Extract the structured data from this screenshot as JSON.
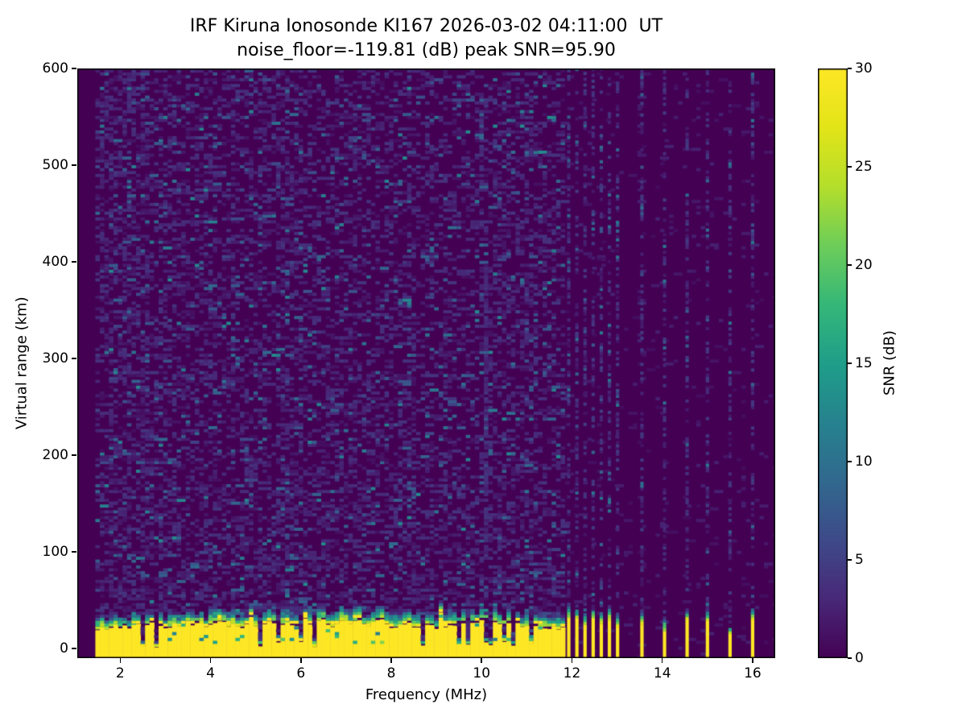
{
  "figure": {
    "title": "IRF Kiruna Ionosonde KI167 2026-03-02 04:11:00  UT",
    "subtitle": "noise_floor=-119.81 (dB) peak SNR=95.90"
  },
  "chart_data": {
    "type": "heatmap",
    "title": "IRF Kiruna Ionosonde KI167 2026-03-02 04:11:00  UT",
    "subtitle": "noise_floor=-119.81 (dB) peak SNR=95.90",
    "station": "IRF Kiruna Ionosonde KI167",
    "timestamp_ut": "2026-03-02 04:11:00",
    "noise_floor_db": -119.81,
    "peak_snr_db": 95.9,
    "xlabel": "Frequency (MHz)",
    "ylabel": "Virtual range (km)",
    "colorbar_label": "SNR (dB)",
    "colormap": "viridis",
    "xlim": [
      1.05,
      16.5
    ],
    "ylim": [
      -10,
      600
    ],
    "clim": [
      0,
      30
    ],
    "xticks": [
      2,
      4,
      6,
      8,
      10,
      12,
      14,
      16
    ],
    "yticks": [
      0,
      100,
      200,
      300,
      400,
      500,
      600
    ],
    "colorbar_ticks": [
      0,
      5,
      10,
      15,
      20,
      25,
      30
    ],
    "legend_position": "right-colorbar",
    "grid": false,
    "features": {
      "min_sounding_freq_mhz": 1.5,
      "ground_clutter_band": {
        "freq_range_mhz": [
          1.5,
          11.82
        ],
        "snr_db": 30,
        "yellow_top_km_range": [
          14,
          36
        ],
        "green_transition_km": [
          6,
          16
        ],
        "notch_top_km_range": [
          1,
          7
        ]
      },
      "stripe_freqs_mhz": [
        11.93,
        12.11,
        12.29,
        12.47,
        12.65,
        12.83,
        13.01,
        13.55,
        14.05,
        14.55,
        15.0,
        15.5,
        16.0
      ],
      "stripe_top_km_range": [
        18,
        40
      ],
      "interference_line": {
        "freq_mhz": 10.12,
        "range_km": [
          90,
          390
        ],
        "snr_db": 4
      },
      "background_snr_db": 0,
      "noise_speckle_snr_db_max": 13
    },
    "colors": {
      "viridis_min": "#440154",
      "viridis_mid": "#21918c",
      "viridis_max": "#fde725",
      "figure_background": "#ffffff",
      "axes_text": "#000000"
    }
  }
}
